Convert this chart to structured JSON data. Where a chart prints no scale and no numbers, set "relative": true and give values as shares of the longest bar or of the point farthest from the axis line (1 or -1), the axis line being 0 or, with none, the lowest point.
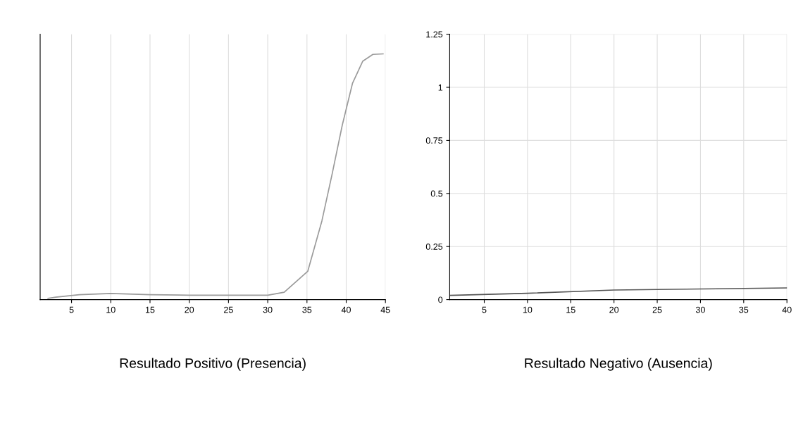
{
  "chart_data": [
    {
      "type": "line",
      "relative": true,
      "xlim": [
        1,
        45
      ],
      "xticks": [
        5,
        10,
        15,
        20,
        25,
        30,
        35,
        40,
        45
      ],
      "grid": true,
      "annotations": [
        "Resultado Positivo (Presencia)"
      ],
      "series": [
        {
          "color": "#9a9a9a",
          "x": [
            2,
            3,
            6,
            10,
            15,
            20,
            25,
            30,
            32.1,
            35.1,
            36.9,
            38.2,
            39.5,
            40.8,
            42.1,
            43.4,
            44.7
          ],
          "values": [
            0.005,
            0.01,
            0.02,
            0.025,
            0.02,
            0.018,
            0.018,
            0.018,
            0.03,
            0.115,
            0.32,
            0.51,
            0.71,
            0.88,
            0.97,
            0.998,
            1
          ]
        }
      ]
    },
    {
      "type": "line",
      "xlim": [
        1,
        40
      ],
      "xticks": [
        5,
        10,
        15,
        20,
        25,
        30,
        35,
        40
      ],
      "ylim": [
        0,
        1.25
      ],
      "yticks": [
        0,
        0.25,
        0.5,
        0.75,
        1,
        1.25
      ],
      "grid": true,
      "annotations": [
        "Resultado Negativo (Ausencia)"
      ],
      "series": [
        {
          "color": "#555555",
          "x": [
            1,
            10,
            20,
            30,
            40
          ],
          "values": [
            0.02,
            0.03,
            0.045,
            0.05,
            0.055
          ]
        }
      ]
    }
  ]
}
